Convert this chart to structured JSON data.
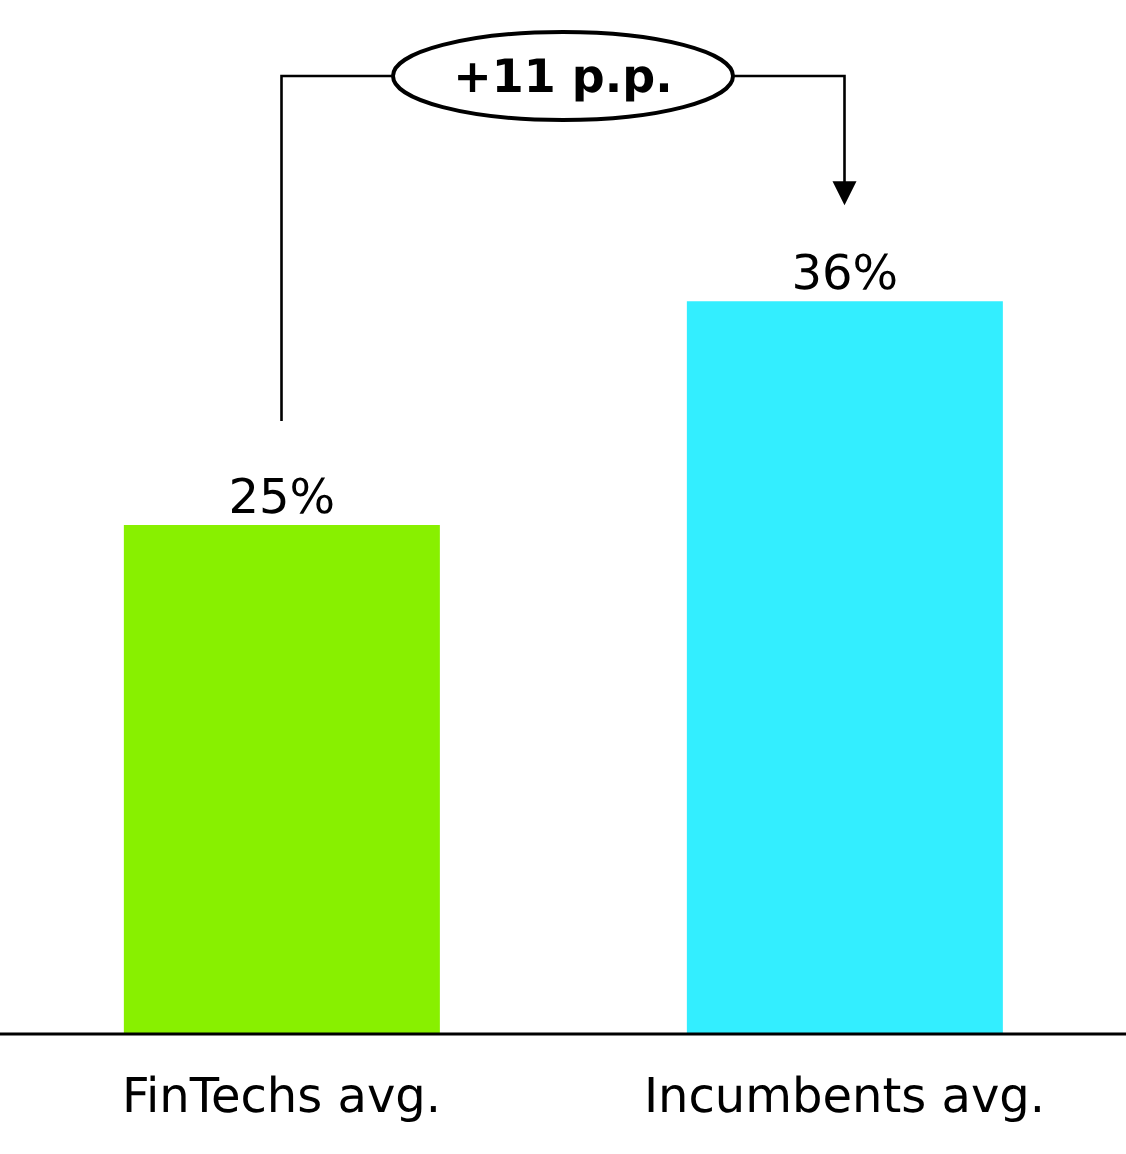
{
  "chart_data": {
    "type": "bar",
    "categories": [
      "FinTechs avg.",
      "Incumbents avg."
    ],
    "values": [
      25,
      36
    ],
    "colors": [
      "#88f000",
      "#33eeff"
    ],
    "value_labels": [
      "25%",
      "36%"
    ],
    "annotations": [
      "+11 p.p."
    ]
  }
}
